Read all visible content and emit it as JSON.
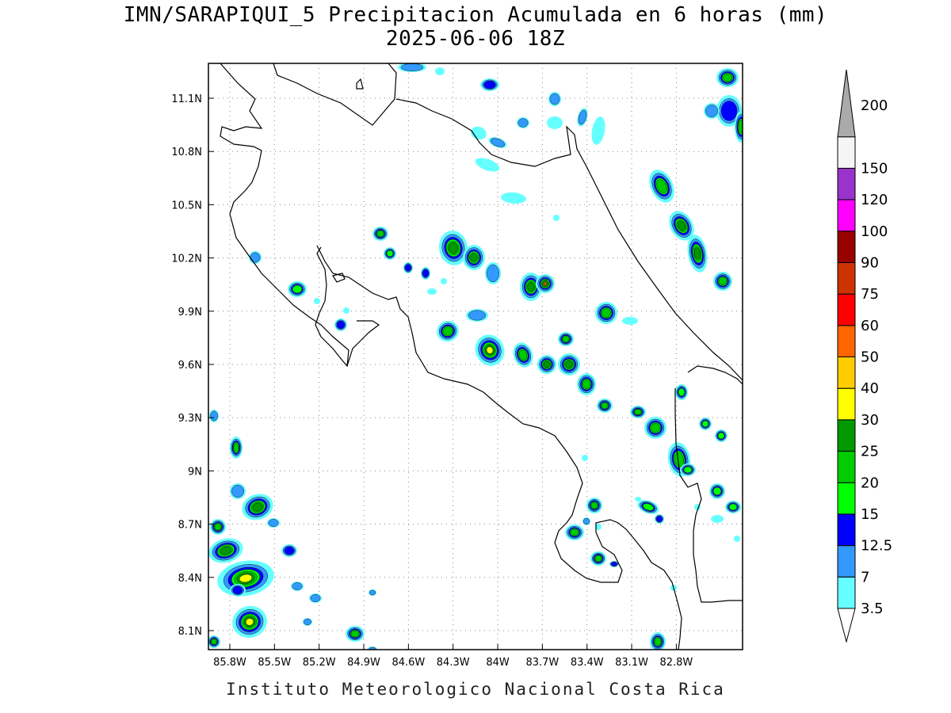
{
  "title_line1": "IMN/SARAPIQUI_5 Precipitacion Acumulada en 6 horas (mm)",
  "title_line2": "2025-06-06 18Z",
  "footer": "Instituto Meteorologico Nacional Costa Rica",
  "map": {
    "lon_range": [
      -86.1,
      -83.09
    ],
    "lat_range": [
      8.0,
      11.3
    ],
    "lon_ticks": [
      {
        "value": -85.8,
        "label": "85.8W"
      },
      {
        "value": -85.5,
        "label": "85.5W"
      },
      {
        "value": -85.2,
        "label": "85.2W"
      },
      {
        "value": -84.9,
        "label": "84.9W"
      },
      {
        "value": -84.6,
        "label": "84.6W"
      },
      {
        "value": -84.3,
        "label": "84.3W"
      },
      {
        "value": -84.0,
        "label": "84W"
      },
      {
        "value": -83.7,
        "label": "83.7W"
      },
      {
        "value": -83.4,
        "label": "83.4W"
      },
      {
        "value": -83.1,
        "label": "83.1W"
      },
      {
        "value": -82.8,
        "label": "82.8W"
      }
    ],
    "lat_ticks": [
      {
        "value": 11.1,
        "label": "11.1N"
      },
      {
        "value": 10.8,
        "label": "10.8N"
      },
      {
        "value": 10.5,
        "label": "10.5N"
      },
      {
        "value": 10.2,
        "label": "10.2N"
      },
      {
        "value": 9.9,
        "label": "9.9N"
      },
      {
        "value": 9.6,
        "label": "9.6N"
      },
      {
        "value": 9.3,
        "label": "9.3N"
      },
      {
        "value": 9.0,
        "label": "9N"
      },
      {
        "value": 8.7,
        "label": "8.7N"
      },
      {
        "value": 8.4,
        "label": "8.4N"
      },
      {
        "value": 8.1,
        "label": "8.1N"
      }
    ],
    "grid": "dotted"
  },
  "colorbar": {
    "levels": [
      {
        "label": "3.5",
        "color": "#66ffff"
      },
      {
        "label": "7",
        "color": "#3399ff"
      },
      {
        "label": "12.5",
        "color": "#0000ff"
      },
      {
        "label": "15",
        "color": "#00ff00"
      },
      {
        "label": "20",
        "color": "#00cc00"
      },
      {
        "label": "25",
        "color": "#009900"
      },
      {
        "label": "30",
        "color": "#ffff00"
      },
      {
        "label": "40",
        "color": "#ffcc00"
      },
      {
        "label": "50",
        "color": "#ff6600"
      },
      {
        "label": "60",
        "color": "#ff0000"
      },
      {
        "label": "75",
        "color": "#cc3300"
      },
      {
        "label": "90",
        "color": "#990000"
      },
      {
        "label": "100",
        "color": "#ff00ff"
      },
      {
        "label": "120",
        "color": "#9933cc"
      },
      {
        "label": "150",
        "color": "#f5f5f5"
      },
      {
        "label": "200",
        "color": "#aaaaaa"
      }
    ]
  }
}
